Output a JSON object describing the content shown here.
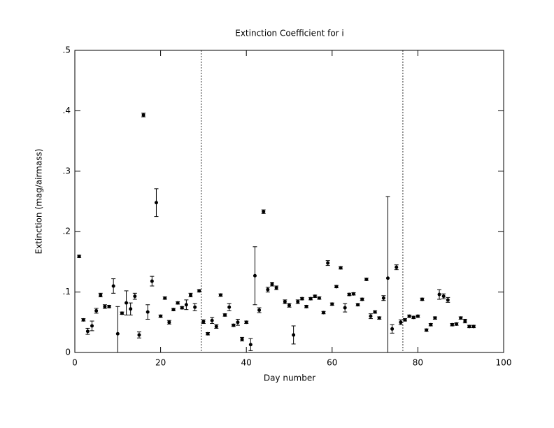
{
  "chart_data": {
    "type": "scatter",
    "title": "Extinction Coefficient for i",
    "xlabel": "Day number",
    "ylabel": "Extinction (mag/airmass)",
    "xlim": [
      0,
      100
    ],
    "ylim": [
      0,
      0.5
    ],
    "xticks": [
      0,
      20,
      40,
      60,
      80,
      100
    ],
    "yticks": [
      0,
      {
        "value": 0.1,
        "label": ".1"
      },
      {
        "value": 0.2,
        "label": ".2"
      },
      {
        "value": 0.3,
        "label": ".3"
      },
      {
        "value": 0.4,
        "label": ".4"
      },
      {
        "value": 0.5,
        "label": ".5"
      }
    ],
    "vlines": [
      29.5,
      76.5
    ],
    "color": "#000000",
    "series": [
      {
        "x": [
          1,
          2,
          3,
          4,
          5,
          6,
          7,
          8,
          9,
          10,
          11,
          12,
          13,
          14,
          15,
          16,
          17,
          18,
          19,
          20,
          21,
          22,
          23,
          24,
          25,
          26,
          27,
          28,
          29,
          30,
          31,
          32,
          33,
          34,
          35,
          36,
          37,
          38,
          39,
          40,
          41,
          42,
          43,
          44,
          45,
          46,
          47,
          49,
          50,
          51,
          52,
          53,
          54,
          55,
          56,
          57,
          58,
          59,
          60,
          61,
          62,
          63,
          64,
          65,
          66,
          67,
          68,
          69,
          70,
          71,
          72,
          73,
          74,
          75,
          76,
          77,
          78,
          79,
          80,
          81,
          82,
          83,
          84,
          85,
          86,
          87,
          88,
          89,
          90,
          91,
          92,
          93
        ],
        "values": [
          0.159,
          0.054,
          0.035,
          0.044,
          0.069,
          0.095,
          0.076,
          0.076,
          0.11,
          0.031,
          0.065,
          0.082,
          0.072,
          0.093,
          0.029,
          0.393,
          0.067,
          0.118,
          0.248,
          0.06,
          0.09,
          0.05,
          0.071,
          0.082,
          0.074,
          0.079,
          0.095,
          0.075,
          0.102,
          0.051,
          0.031,
          0.053,
          0.043,
          0.095,
          0.062,
          0.075,
          0.045,
          0.05,
          0.022,
          0.05,
          0.013,
          0.127,
          0.07,
          0.233,
          0.104,
          0.113,
          0.107,
          0.084,
          0.078,
          0.029,
          0.084,
          0.089,
          0.076,
          0.089,
          0.093,
          0.09,
          0.066,
          0.148,
          0.08,
          0.109,
          0.14,
          0.074,
          0.096,
          0.097,
          0.079,
          0.088,
          0.121,
          0.06,
          0.067,
          0.057,
          0.09,
          0.123,
          0.039,
          0.141,
          0.05,
          0.054,
          0.06,
          0.058,
          0.06,
          0.088,
          0.037,
          0.046,
          0.057,
          0.096,
          0.093,
          0.087,
          0.046,
          0.047,
          0.057,
          0.052,
          0.043,
          0.043
        ],
        "errors": [
          0.002,
          0.002,
          0.005,
          0.008,
          0.004,
          0.003,
          0.003,
          0.002,
          0.012,
          0.045,
          0.002,
          0.02,
          0.01,
          0.005,
          0.005,
          0.003,
          0.012,
          0.008,
          0.023,
          0.002,
          0.002,
          0.003,
          0.002,
          0.002,
          0.002,
          0.008,
          0.003,
          0.006,
          0.002,
          0.003,
          0.002,
          0.005,
          0.003,
          0.002,
          0.002,
          0.006,
          0.002,
          0.005,
          0.003,
          0.002,
          0.01,
          0.048,
          0.004,
          0.003,
          0.004,
          0.003,
          0.003,
          0.003,
          0.003,
          0.015,
          0.003,
          0.002,
          0.002,
          0.002,
          0.002,
          0.002,
          0.002,
          0.004,
          0.002,
          0.002,
          0.002,
          0.007,
          0.002,
          0.002,
          0.002,
          0.002,
          0.002,
          0.004,
          0.002,
          0.002,
          0.004,
          0.135,
          0.007,
          0.004,
          0.004,
          0.002,
          0.002,
          0.002,
          0.002,
          0.002,
          0.002,
          0.002,
          0.002,
          0.008,
          0.004,
          0.004,
          0.002,
          0.002,
          0.002,
          0.003,
          0.002,
          0.002
        ]
      }
    ]
  }
}
